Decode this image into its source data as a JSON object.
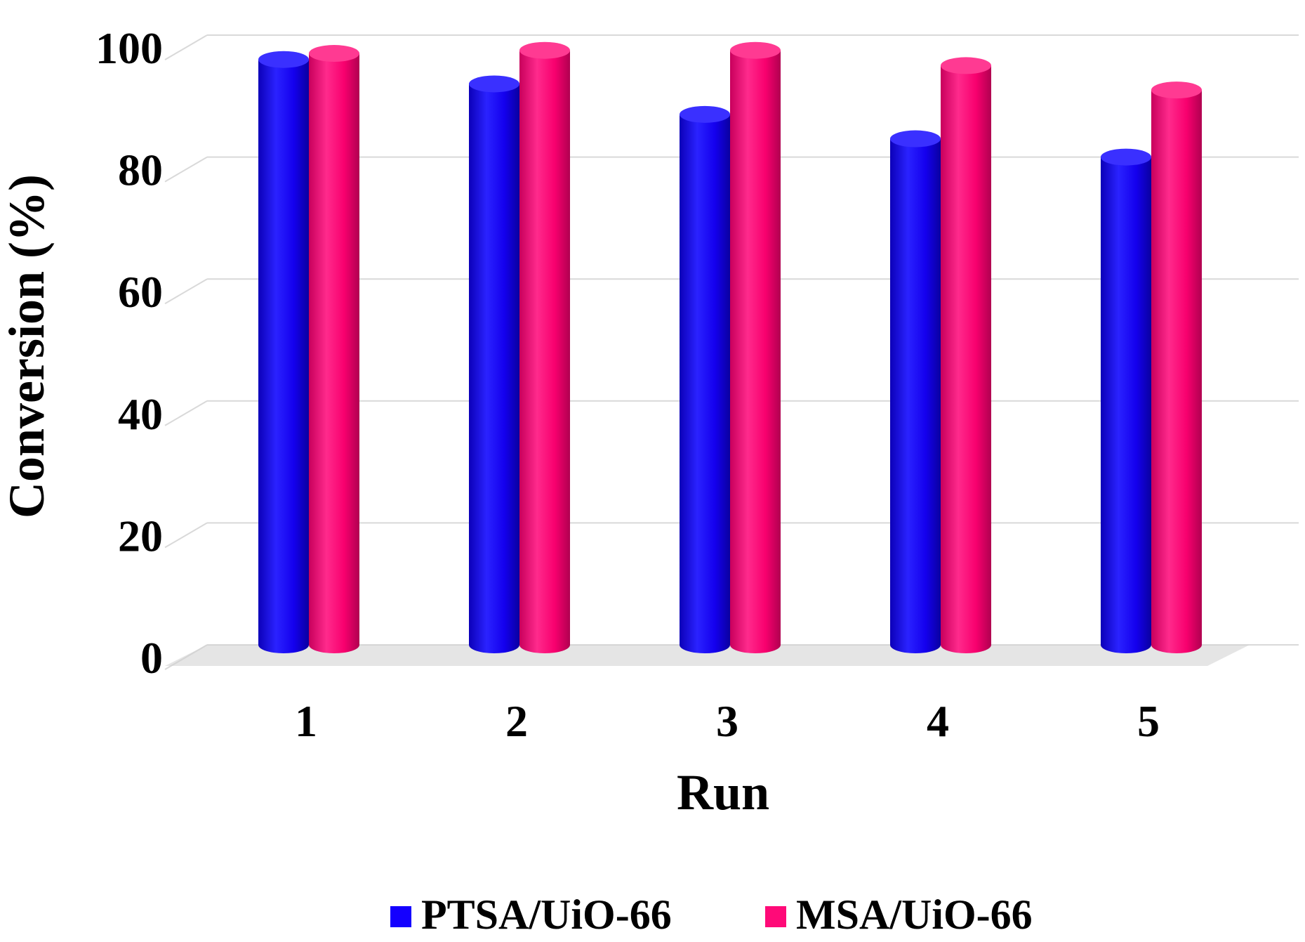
{
  "chart_data": {
    "type": "bar",
    "style": "3d-cylinder",
    "title": "",
    "xlabel": "Run",
    "ylabel": "Conversion (%)",
    "categories": [
      "1",
      "2",
      "3",
      "4",
      "5"
    ],
    "ylim": [
      0,
      100
    ],
    "yticks": [
      "0",
      "20",
      "40",
      "60",
      "80",
      "100"
    ],
    "grid": true,
    "legend_position": "bottom",
    "series": [
      {
        "name": "PTSA/UiO-66",
        "color": "#1400ff",
        "values": [
          96,
          92,
          87,
          83,
          80
        ]
      },
      {
        "name": "MSA/UiO-66",
        "color": "#ff0a78",
        "values": [
          97,
          97.5,
          97.5,
          95,
          91
        ]
      }
    ]
  }
}
